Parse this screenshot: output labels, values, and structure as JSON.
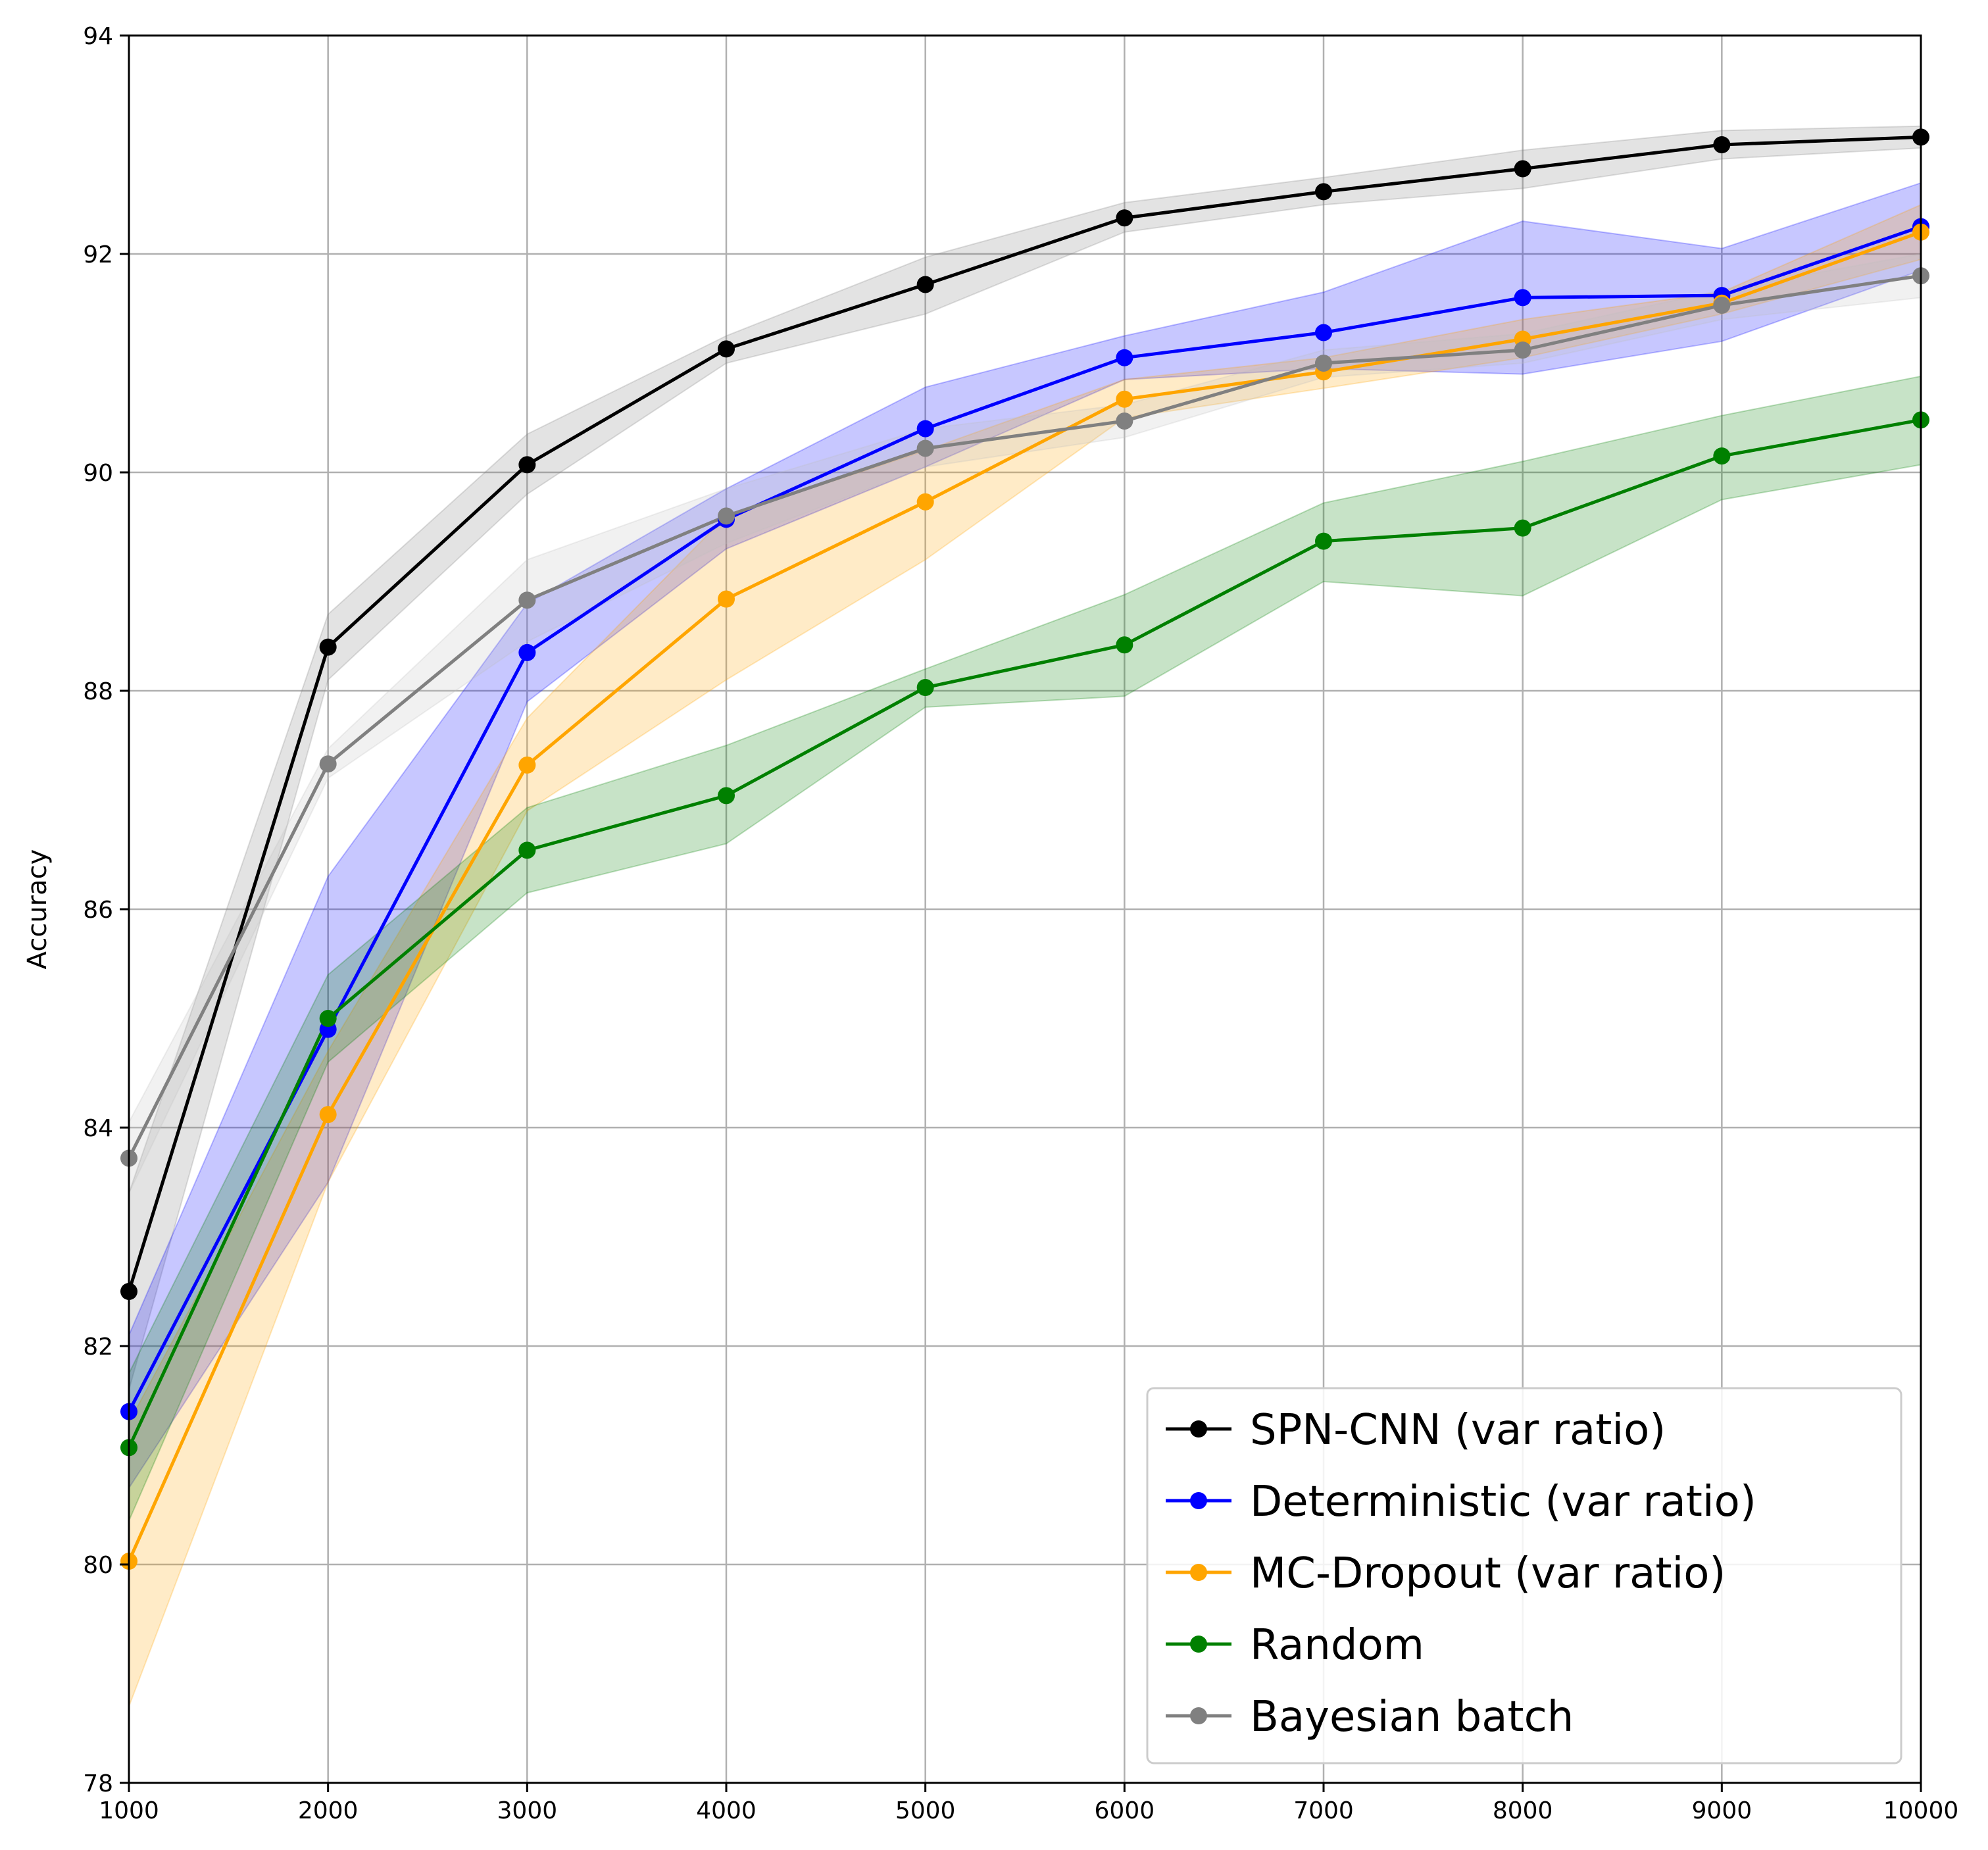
{
  "chart_data": {
    "type": "line",
    "title": "",
    "xlabel": "",
    "ylabel": "Accuracy",
    "xlim": [
      1000,
      10000
    ],
    "ylim": [
      78,
      94
    ],
    "xticks": [
      1000,
      2000,
      3000,
      4000,
      5000,
      6000,
      7000,
      8000,
      9000,
      10000
    ],
    "yticks": [
      78,
      80,
      82,
      84,
      86,
      88,
      90,
      92,
      94
    ],
    "grid": true,
    "legend_position": "bottom-right",
    "x": [
      1000,
      2000,
      3000,
      4000,
      5000,
      6000,
      7000,
      8000,
      9000,
      10000
    ],
    "series": [
      {
        "name": "SPN-CNN (var ratio)",
        "color": "#000000",
        "band_color": "#808080",
        "values": [
          82.5,
          88.4,
          90.07,
          91.13,
          91.72,
          92.33,
          92.57,
          92.78,
          93.0,
          93.07
        ],
        "lower": [
          81.6,
          88.1,
          89.8,
          91.0,
          91.45,
          92.2,
          92.45,
          92.6,
          92.87,
          92.97
        ],
        "upper": [
          83.4,
          88.7,
          90.35,
          91.25,
          91.97,
          92.47,
          92.7,
          92.95,
          93.13,
          93.17
        ]
      },
      {
        "name": "Deterministic (var ratio)",
        "color": "#0000ff",
        "band_color": "#0000ff",
        "values": [
          81.4,
          84.9,
          88.35,
          89.57,
          90.4,
          91.05,
          91.28,
          91.6,
          91.62,
          92.25
        ],
        "lower": [
          80.7,
          83.5,
          87.9,
          89.3,
          90.05,
          90.85,
          90.95,
          90.9,
          91.2,
          91.85
        ],
        "upper": [
          82.1,
          86.3,
          88.8,
          89.85,
          90.78,
          91.25,
          91.65,
          92.3,
          92.05,
          92.65
        ]
      },
      {
        "name": "MC-Dropout (var ratio)",
        "color": "#ffa500",
        "band_color": "#ffa500",
        "values": [
          80.03,
          84.12,
          87.32,
          88.84,
          89.73,
          90.67,
          90.92,
          91.22,
          91.55,
          92.2
        ],
        "lower": [
          78.7,
          83.5,
          86.9,
          88.1,
          89.2,
          90.5,
          90.77,
          91.05,
          91.45,
          91.95
        ],
        "upper": [
          81.3,
          84.7,
          87.75,
          89.6,
          90.2,
          90.85,
          91.05,
          91.4,
          91.65,
          92.45
        ]
      },
      {
        "name": "Random",
        "color": "#008000",
        "band_color": "#008000",
        "values": [
          81.07,
          85.0,
          86.54,
          87.04,
          88.03,
          88.42,
          89.37,
          89.49,
          90.15,
          90.48
        ],
        "lower": [
          80.4,
          84.6,
          86.15,
          86.6,
          87.85,
          87.95,
          89.0,
          88.87,
          89.75,
          90.07
        ],
        "upper": [
          81.75,
          85.4,
          86.93,
          87.5,
          88.2,
          88.88,
          89.72,
          90.1,
          90.52,
          90.88
        ]
      },
      {
        "name": "Bayesian batch",
        "color": "#808080",
        "band_color": "#c0c0c0",
        "values": [
          83.72,
          87.33,
          88.83,
          89.6,
          90.22,
          90.47,
          91.0,
          91.12,
          91.53,
          91.8
        ],
        "lower": [
          83.4,
          87.2,
          88.45,
          89.35,
          90.05,
          90.32,
          90.87,
          91.0,
          91.4,
          91.6
        ],
        "upper": [
          84.05,
          87.47,
          89.2,
          89.85,
          90.4,
          90.62,
          91.12,
          91.27,
          91.67,
          92.0
        ]
      }
    ]
  }
}
